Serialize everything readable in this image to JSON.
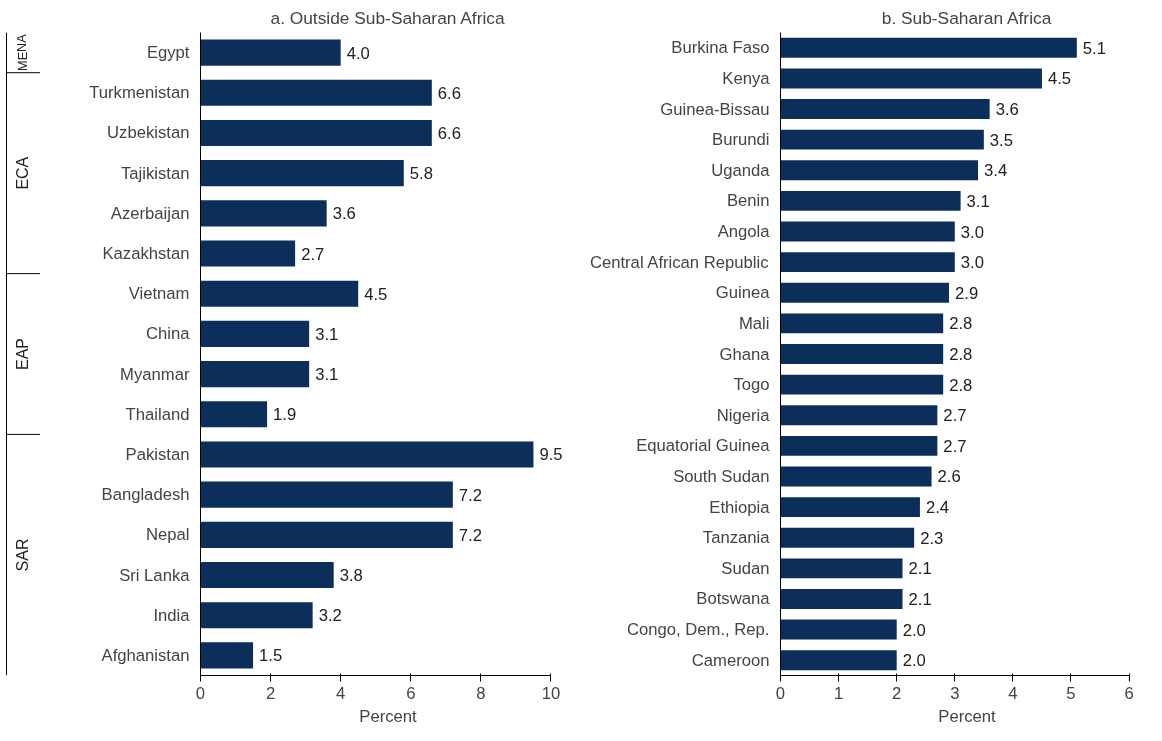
{
  "chart_data": [
    {
      "type": "bar",
      "orientation": "horizontal",
      "title": "a. Outside Sub-Saharan Africa",
      "xlabel": "Percent",
      "categories": [
        "Egypt",
        "Turkmenistan",
        "Uzbekistan",
        "Tajikistan",
        "Azerbaijan",
        "Kazakhstan",
        "Vietnam",
        "China",
        "Myanmar",
        "Thailand",
        "Pakistan",
        "Bangladesh",
        "Nepal",
        "Sri Lanka",
        "India",
        "Afghanistan"
      ],
      "values": [
        4.0,
        6.6,
        6.6,
        5.8,
        3.6,
        2.7,
        4.5,
        3.1,
        3.1,
        1.9,
        9.5,
        7.2,
        7.2,
        3.8,
        3.2,
        1.5
      ],
      "value_labels": [
        "4.0",
        "6.6",
        "6.6",
        "5.8",
        "3.6",
        "2.7",
        "4.5",
        "3.1",
        "3.1",
        "1.9",
        "9.5",
        "7.2",
        "7.2",
        "3.8",
        "3.2",
        "1.5"
      ],
      "color": "#0b2f5a",
      "xlim": [
        0,
        10
      ],
      "xticks": [
        0,
        2,
        4,
        6,
        8,
        10
      ],
      "grid": false,
      "annotations": [
        "MENA",
        "ECA",
        "EAP",
        "SAR"
      ]
    },
    {
      "type": "bar",
      "orientation": "horizontal",
      "title": "b. Sub-Saharan Africa",
      "xlabel": "Percent",
      "categories": [
        "Burkina Faso",
        "Kenya",
        "Guinea-Bissau",
        "Burundi",
        "Uganda",
        "Benin",
        "Angola",
        "Central African Republic",
        "Guinea",
        "Mali",
        "Ghana",
        "Togo",
        "Nigeria",
        "Equatorial Guinea",
        "South Sudan",
        "Ethiopia",
        "Tanzania",
        "Sudan",
        "Botswana",
        "Congo, Dem., Rep.",
        "Cameroon"
      ],
      "values": [
        5.1,
        4.5,
        3.6,
        3.5,
        3.4,
        3.1,
        3.0,
        3.0,
        2.9,
        2.8,
        2.8,
        2.8,
        2.7,
        2.7,
        2.6,
        2.4,
        2.3,
        2.1,
        2.1,
        2.0,
        2.0
      ],
      "value_labels": [
        "5.1",
        "4.5",
        "3.6",
        "3.5",
        "3.4",
        "3.1",
        "3.0",
        "3.0",
        "2.9",
        "2.8",
        "2.8",
        "2.8",
        "2.7",
        "2.7",
        "2.6",
        "2.4",
        "2.3",
        "2.1",
        "2.1",
        "2.0",
        "2.0"
      ],
      "color": "#0b2f5a",
      "xlim": [
        0,
        6
      ],
      "xticks": [
        0,
        1,
        2,
        3,
        4,
        5,
        6
      ],
      "grid": false
    }
  ]
}
